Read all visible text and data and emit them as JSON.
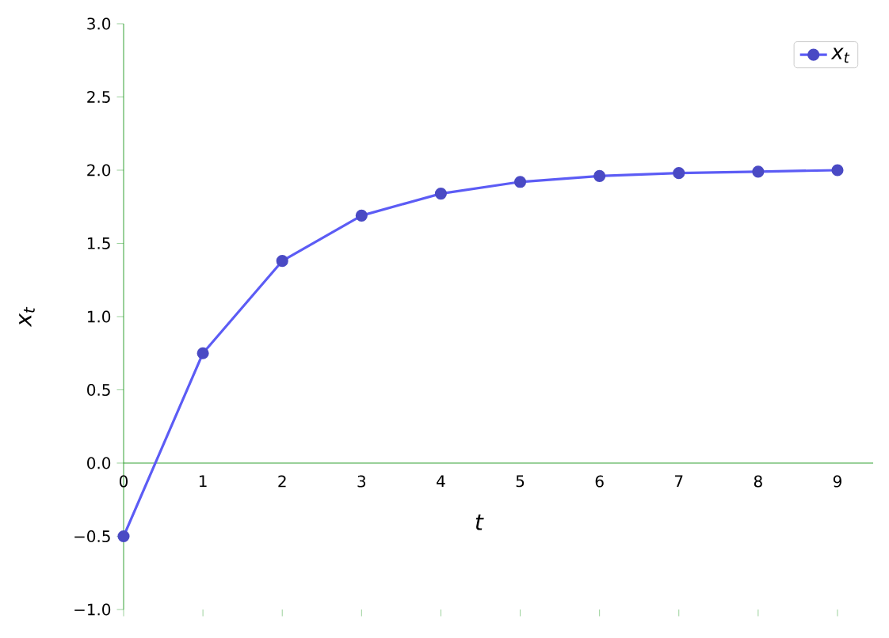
{
  "chart_data": {
    "type": "line",
    "xlabel": "t",
    "ylabel": "x$_{t}$",
    "x": [
      0,
      1,
      2,
      3,
      4,
      5,
      6,
      7,
      8,
      9
    ],
    "series": [
      {
        "name": "x$_{t}$",
        "color": "#5c5cf5",
        "values": [
          -0.5,
          0.75,
          1.38,
          1.69,
          1.84,
          1.92,
          1.96,
          1.98,
          1.99,
          2.0
        ]
      }
    ],
    "xlim": [
      0,
      9.45
    ],
    "ylim": [
      -1,
      3
    ],
    "xticks": [
      0,
      1,
      2,
      3,
      4,
      5,
      6,
      7,
      8,
      9
    ],
    "yticks": [
      {
        "value": -1,
        "label": "−1.0"
      },
      {
        "value": -0.5,
        "label": "−0.5"
      },
      {
        "value": 0,
        "label": "0.0"
      },
      {
        "value": 0.5,
        "label": "0.5"
      },
      {
        "value": 1,
        "label": "1.0"
      },
      {
        "value": 1.5,
        "label": "1.5"
      },
      {
        "value": 2,
        "label": "2.0"
      },
      {
        "value": 2.5,
        "label": "2.5"
      },
      {
        "value": 3,
        "label": "3.0"
      }
    ],
    "legend": "top right",
    "marker": "circle",
    "line_style": "solid",
    "grid": false
  }
}
